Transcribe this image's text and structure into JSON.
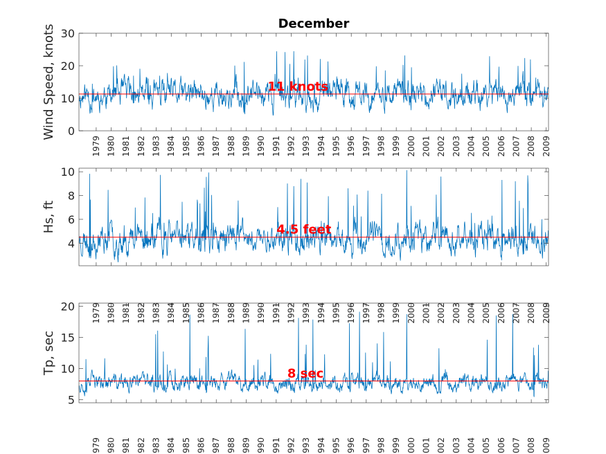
{
  "title": "December",
  "years": [
    "1979",
    "1980",
    "1981",
    "1982",
    "1983",
    "1984",
    "1985",
    "1986",
    "1987",
    "1988",
    "1989",
    "1990",
    "1991",
    "1992",
    "1993",
    "1994",
    "1995",
    "1996",
    "1997",
    "1998",
    "1999",
    "2000",
    "2001",
    "2002",
    "2003",
    "2004",
    "2005",
    "2006",
    "2007",
    "2008",
    "2009"
  ],
  "colors": {
    "series": "#0072BD",
    "mean": "#FF0000",
    "mean_text": "#FF0000"
  },
  "chart_data": [
    {
      "type": "line",
      "name": "wind",
      "ylabel": "Wind Speed, knots",
      "ylim": [
        0,
        30
      ],
      "yticks": [
        0,
        10,
        20,
        30
      ],
      "xlim": [
        1978.8,
        2010.1
      ],
      "mean": 11.3,
      "mean_label": "11 knots",
      "mean_label_x": 1993.4,
      "series_model": {
        "base": 11,
        "spread": 3.5,
        "min": 0.2,
        "max": 24.5,
        "seed": 11
      }
    },
    {
      "type": "line",
      "name": "hs",
      "ylabel": "Hs, ft",
      "ylim": [
        2.1,
        10.3
      ],
      "yticks": [
        4,
        6,
        8,
        10
      ],
      "xlim": [
        1978.8,
        2010.1
      ],
      "mean": 4.5,
      "mean_label": "4.5 feet",
      "mean_label_x": 1993.8,
      "series_model": {
        "base": 4.4,
        "spread": 1.0,
        "min": 2.2,
        "max": 10.2,
        "seed": 23
      }
    },
    {
      "type": "line",
      "name": "tp",
      "ylabel": "Tp, sec",
      "ylim": [
        4.5,
        20.5
      ],
      "yticks": [
        5,
        10,
        15,
        20
      ],
      "xlim": [
        1978.8,
        2010.1
      ],
      "mean": 8.0,
      "mean_label": "8 sec",
      "mean_label_x": 1993.9,
      "series_model": {
        "base": 7.7,
        "spread": 1.1,
        "min": 4.6,
        "max": 20.4,
        "seed": 37
      }
    }
  ]
}
